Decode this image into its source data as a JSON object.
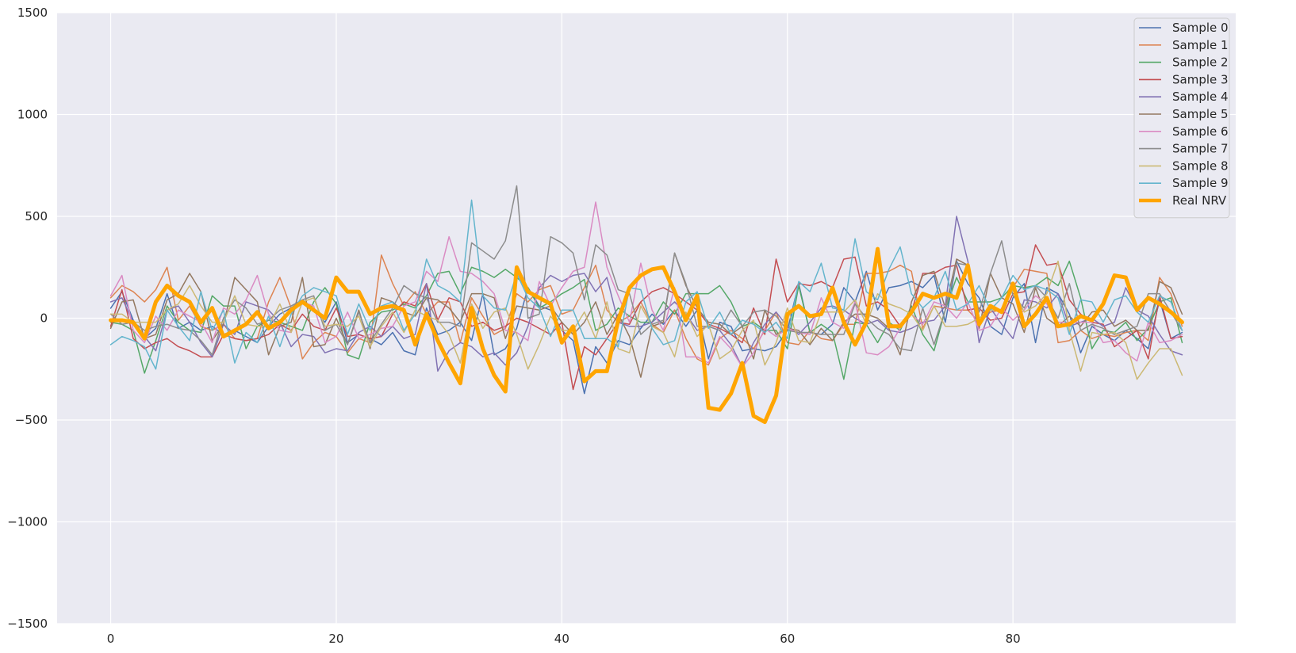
{
  "chart_data": {
    "type": "line",
    "title": "",
    "xlabel": "",
    "ylabel": "",
    "xlim": [
      -4.75,
      99.75
    ],
    "ylim": [
      -1500,
      1500
    ],
    "x_ticks": [
      0,
      20,
      40,
      60,
      80
    ],
    "y_ticks": [
      -1500,
      -1000,
      -500,
      0,
      500,
      1000,
      1500
    ],
    "x_tick_labels": [
      "0",
      "20",
      "40",
      "60",
      "80"
    ],
    "y_tick_labels": [
      "−1500",
      "−1000",
      "−500",
      "0",
      "500",
      "1000",
      "1500"
    ],
    "grid": true,
    "background": "#eaeaf2",
    "legend_position": "top-right",
    "series": [
      {
        "name": "Sample 0",
        "color": "#4c72b0",
        "width": 1.5,
        "values": [
          49,
          130,
          -10,
          -100,
          -50,
          120,
          -50,
          -20,
          -60,
          -40,
          -80,
          -60,
          -90,
          -120,
          -40,
          20,
          50,
          90,
          40,
          -20,
          80,
          -120,
          -80,
          -100,
          -130,
          -70,
          -160,
          -180,
          50,
          -80,
          -60,
          -20,
          -110,
          120,
          -180,
          -150,
          -50,
          150,
          60,
          40,
          -60,
          -110,
          -370,
          -140,
          -220,
          -110,
          -130,
          -50,
          20,
          -30,
          40,
          -40,
          40,
          -200,
          -20,
          -40,
          -160,
          -150,
          -160,
          -140,
          -60,
          170,
          -70,
          -80,
          -30,
          150,
          80,
          230,
          40,
          150,
          160,
          180,
          150,
          210,
          -20,
          280,
          170,
          100,
          -40,
          -80,
          100,
          170,
          -120,
          150,
          120,
          20,
          -170,
          -40,
          -80,
          -110,
          -60,
          -100,
          -150,
          90,
          -100,
          -70
        ]
      },
      {
        "name": "Sample 1",
        "color": "#dd8452",
        "width": 1.5,
        "values": [
          100,
          160,
          130,
          80,
          140,
          250,
          -10,
          60,
          -40,
          -60,
          -30,
          -100,
          -110,
          -100,
          80,
          200,
          50,
          -200,
          -120,
          -70,
          -90,
          -170,
          -100,
          -120,
          310,
          170,
          60,
          130,
          20,
          80,
          80,
          -120,
          100,
          10,
          -80,
          -50,
          120,
          80,
          140,
          160,
          20,
          40,
          150,
          260,
          40,
          -20,
          10,
          80,
          -30,
          -70,
          40,
          -100,
          -200,
          -230,
          -100,
          -60,
          -100,
          -150,
          -60,
          30,
          -120,
          -130,
          -60,
          -100,
          -110,
          -30,
          -30,
          220,
          220,
          230,
          260,
          230,
          -50,
          60,
          50,
          40,
          40,
          -20,
          30,
          40,
          150,
          240,
          230,
          220,
          -120,
          -110,
          -60,
          -100,
          -80,
          -90,
          -70,
          -60,
          -110,
          200,
          120,
          -40
        ]
      },
      {
        "name": "Sample 2",
        "color": "#55a868",
        "width": 1.5,
        "values": [
          -20,
          -30,
          -60,
          -270,
          -110,
          60,
          -20,
          -60,
          -70,
          110,
          60,
          60,
          -150,
          -40,
          -10,
          -20,
          -40,
          -60,
          80,
          150,
          70,
          -180,
          -200,
          -20,
          30,
          40,
          70,
          50,
          110,
          220,
          230,
          120,
          250,
          230,
          200,
          240,
          200,
          150,
          50,
          80,
          120,
          150,
          190,
          -60,
          -30,
          50,
          10,
          -20,
          -20,
          80,
          20,
          120,
          120,
          120,
          160,
          80,
          -40,
          -20,
          -60,
          -60,
          -150,
          160,
          -70,
          -30,
          -70,
          -300,
          -20,
          -30,
          -120,
          -20,
          -60,
          60,
          -80,
          -160,
          40,
          200,
          80,
          80,
          80,
          100,
          160,
          150,
          160,
          200,
          160,
          280,
          100,
          -150,
          -60,
          -70,
          -20,
          -110,
          -50,
          80,
          100,
          -120
        ]
      },
      {
        "name": "Sample 3",
        "color": "#c44e52",
        "width": 1.5,
        "values": [
          -40,
          140,
          -100,
          -150,
          -120,
          -100,
          -140,
          -160,
          -190,
          -190,
          -80,
          -100,
          -110,
          -100,
          -80,
          -30,
          -60,
          20,
          -40,
          -60,
          50,
          -90,
          -80,
          -100,
          -90,
          20,
          80,
          60,
          170,
          -10,
          100,
          80,
          -40,
          -20,
          -60,
          -40,
          0,
          -20,
          -50,
          -80,
          -20,
          -350,
          -140,
          -180,
          -100,
          -20,
          -30,
          80,
          130,
          150,
          120,
          80,
          40,
          -30,
          -50,
          -80,
          -120,
          50,
          -80,
          290,
          80,
          170,
          160,
          180,
          150,
          290,
          300,
          60,
          80,
          40,
          -40,
          30,
          220,
          220,
          250,
          260,
          40,
          50,
          -10,
          0,
          120,
          130,
          360,
          260,
          270,
          90,
          20,
          -20,
          -30,
          -140,
          -100,
          -60,
          -200,
          110,
          -100,
          -90
        ]
      },
      {
        "name": "Sample 4",
        "color": "#8172b3",
        "width": 1.5,
        "values": [
          80,
          100,
          -20,
          -90,
          -160,
          40,
          60,
          -20,
          -120,
          -190,
          -30,
          -80,
          80,
          60,
          40,
          -20,
          -140,
          -80,
          -90,
          -170,
          -150,
          -160,
          -70,
          -40,
          -90,
          -40,
          -100,
          -80,
          170,
          -260,
          -160,
          -120,
          -140,
          -190,
          -170,
          -230,
          -170,
          -40,
          150,
          210,
          180,
          210,
          220,
          130,
          200,
          -20,
          -40,
          -40,
          -20,
          30,
          80,
          20,
          -60,
          -40,
          -60,
          -130,
          -240,
          -120,
          -30,
          30,
          -40,
          -80,
          -20,
          50,
          60,
          40,
          0,
          -30,
          -10,
          -60,
          -70,
          -50,
          -20,
          -10,
          60,
          500,
          280,
          -120,
          50,
          -30,
          -100,
          90,
          80,
          50,
          120,
          -40,
          -20,
          0,
          -40,
          -20,
          150,
          40,
          10,
          -80,
          -160,
          -180
        ]
      },
      {
        "name": "Sample 5",
        "color": "#937860",
        "width": 1.5,
        "values": [
          -50,
          80,
          90,
          -100,
          -80,
          90,
          120,
          220,
          130,
          -110,
          -30,
          200,
          140,
          80,
          -180,
          -40,
          -20,
          200,
          -140,
          -130,
          0,
          -130,
          40,
          -150,
          100,
          80,
          30,
          10,
          100,
          90,
          50,
          -20,
          120,
          120,
          100,
          -100,
          60,
          50,
          40,
          60,
          -20,
          -80,
          -20,
          80,
          -80,
          20,
          -90,
          -290,
          -40,
          -20,
          320,
          160,
          50,
          -20,
          -30,
          -80,
          -40,
          -200,
          40,
          -80,
          -50,
          -60,
          -130,
          -50,
          -110,
          -20,
          20,
          20,
          0,
          -50,
          -180,
          80,
          210,
          230,
          50,
          290,
          260,
          -50,
          220,
          100,
          70,
          -70,
          150,
          0,
          -40,
          10,
          -40,
          30,
          40,
          -40,
          -10,
          -60,
          -60,
          180,
          150,
          20
        ]
      },
      {
        "name": "Sample 6",
        "color": "#da8bc3",
        "width": 1.5,
        "values": [
          110,
          210,
          -60,
          -120,
          10,
          -60,
          40,
          10,
          -20,
          -120,
          50,
          20,
          90,
          210,
          20,
          -60,
          -70,
          80,
          60,
          -120,
          -90,
          30,
          -100,
          -80,
          -50,
          -40,
          60,
          80,
          230,
          180,
          400,
          230,
          220,
          180,
          120,
          -60,
          -70,
          -110,
          180,
          60,
          150,
          230,
          250,
          570,
          250,
          110,
          -20,
          270,
          40,
          -60,
          150,
          -190,
          -190,
          -220,
          -90,
          -150,
          -240,
          -170,
          -50,
          -90,
          -50,
          -70,
          -80,
          100,
          -20,
          -50,
          80,
          -170,
          -180,
          -140,
          -50,
          20,
          -30,
          80,
          60,
          0,
          80,
          -60,
          -40,
          50,
          -10,
          40,
          110,
          70,
          -20,
          -20,
          -20,
          -20,
          -120,
          -110,
          -170,
          -210,
          -20,
          -120,
          -110,
          -80
        ]
      },
      {
        "name": "Sample 7",
        "color": "#8c8c8c",
        "width": 1.5,
        "values": [
          20,
          -30,
          -20,
          -60,
          -40,
          -30,
          -50,
          -60,
          -110,
          -180,
          0,
          90,
          50,
          -30,
          -10,
          40,
          60,
          90,
          110,
          -60,
          -30,
          -130,
          30,
          -120,
          -30,
          50,
          160,
          120,
          100,
          -20,
          -20,
          -40,
          370,
          330,
          290,
          380,
          650,
          0,
          20,
          400,
          370,
          320,
          90,
          360,
          310,
          140,
          120,
          -80,
          -30,
          -10,
          320,
          170,
          -40,
          -40,
          -60,
          40,
          -40,
          30,
          40,
          10,
          -60,
          -70,
          -70,
          -80,
          -80,
          -80,
          70,
          0,
          -50,
          -80,
          -150,
          -160,
          50,
          -130,
          40,
          270,
          260,
          30,
          220,
          380,
          110,
          50,
          160,
          100,
          0,
          170,
          -60,
          -30,
          -50,
          -80,
          -60,
          -40,
          120,
          120,
          30,
          -60
        ]
      },
      {
        "name": "Sample 8",
        "color": "#ccb974",
        "width": 1.5,
        "values": [
          20,
          20,
          -20,
          -20,
          -20,
          40,
          70,
          160,
          60,
          -20,
          -20,
          110,
          -30,
          -40,
          -40,
          70,
          -70,
          80,
          100,
          -40,
          -30,
          -40,
          10,
          -140,
          -40,
          30,
          -70,
          40,
          10,
          -10,
          -80,
          -220,
          70,
          -50,
          30,
          50,
          -80,
          -250,
          -130,
          10,
          -60,
          -60,
          30,
          -100,
          80,
          -150,
          -170,
          60,
          -40,
          -70,
          -190,
          30,
          -90,
          -30,
          -200,
          -160,
          -60,
          -10,
          -230,
          -120,
          50,
          -110,
          -120,
          30,
          30,
          30,
          90,
          -30,
          120,
          70,
          50,
          20,
          -60,
          60,
          -40,
          -40,
          -30,
          0,
          40,
          40,
          140,
          30,
          60,
          120,
          280,
          -60,
          -260,
          -70,
          -80,
          -70,
          -120,
          -300,
          -220,
          -150,
          -150,
          -280
        ]
      },
      {
        "name": "Sample 9",
        "color": "#64b5cd",
        "width": 1.5,
        "values": [
          -130,
          -90,
          -110,
          -140,
          -250,
          40,
          -40,
          -110,
          130,
          -60,
          40,
          -220,
          -70,
          -120,
          10,
          -140,
          20,
          110,
          150,
          130,
          110,
          -80,
          70,
          -60,
          60,
          80,
          -60,
          20,
          290,
          160,
          130,
          80,
          580,
          110,
          50,
          40,
          220,
          100,
          50,
          -90,
          40,
          40,
          -100,
          -100,
          -100,
          -140,
          150,
          140,
          -50,
          -130,
          -110,
          80,
          130,
          -50,
          30,
          -80,
          -10,
          -30,
          -70,
          -20,
          -100,
          180,
          130,
          270,
          50,
          40,
          390,
          130,
          90,
          240,
          350,
          120,
          50,
          100,
          230,
          40,
          70,
          160,
          40,
          100,
          210,
          140,
          160,
          140,
          100,
          -80,
          90,
          80,
          -20,
          90,
          110,
          30,
          -20,
          110,
          80,
          -60
        ]
      },
      {
        "name": "Real NRV",
        "color": "#ffa500",
        "width": 5,
        "values": [
          -10,
          -10,
          -20,
          -100,
          80,
          160,
          110,
          80,
          -20,
          50,
          -90,
          -60,
          -30,
          30,
          -50,
          -20,
          40,
          80,
          40,
          0,
          200,
          130,
          130,
          20,
          50,
          60,
          40,
          -130,
          20,
          -110,
          -220,
          -320,
          50,
          -150,
          -280,
          -360,
          250,
          130,
          100,
          70,
          -120,
          -40,
          -310,
          -260,
          -260,
          -10,
          150,
          210,
          240,
          250,
          130,
          -10,
          110,
          -440,
          -450,
          -370,
          -220,
          -480,
          -510,
          -380,
          20,
          60,
          10,
          20,
          150,
          -20,
          -130,
          -20,
          340,
          -40,
          -40,
          30,
          120,
          100,
          120,
          100,
          260,
          -30,
          60,
          30,
          170,
          -40,
          20,
          100,
          -40,
          -30,
          10,
          -10,
          70,
          210,
          200,
          40,
          100,
          70,
          30,
          -20
        ]
      }
    ]
  }
}
